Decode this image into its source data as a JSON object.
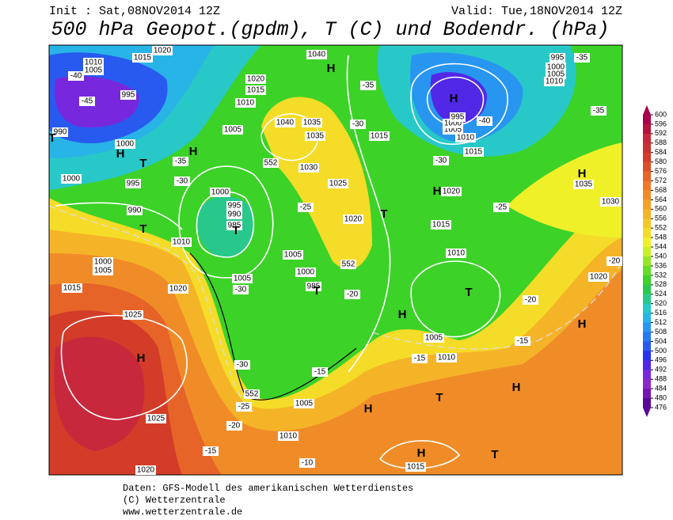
{
  "header": {
    "init": "Init : Sat,08NOV2014 12Z",
    "valid": "Valid: Tue,18NOV2014 12Z",
    "title": "500 hPa Geopot.(gpdm), T (C) und Bodendr. (hPa)"
  },
  "colorbar": {
    "ticks": [
      600,
      596,
      592,
      588,
      584,
      580,
      576,
      572,
      568,
      564,
      560,
      556,
      552,
      548,
      544,
      540,
      536,
      532,
      528,
      524,
      520,
      516,
      512,
      508,
      504,
      500,
      496,
      492,
      488,
      484,
      480,
      476
    ],
    "colors": [
      "#a8004a",
      "#b4143c",
      "#c8283c",
      "#c83232",
      "#d23c28",
      "#dc5028",
      "#e66428",
      "#f07828",
      "#f08c28",
      "#f5a028",
      "#f5b428",
      "#f5c828",
      "#f5dc28",
      "#f0f028",
      "#c8f028",
      "#96e628",
      "#64dc28",
      "#3cd228",
      "#28c850",
      "#28c88c",
      "#28c8c8",
      "#28b4e6",
      "#2896f0",
      "#2878f0",
      "#285af0",
      "#2832f0",
      "#5028e6",
      "#7828dc",
      "#8c28c8",
      "#7814b4",
      "#5a0a96"
    ]
  },
  "map_labels": [
    "1010",
    "1005",
    "1015",
    "1020",
    "-40",
    "-45",
    "995",
    "990",
    "1000",
    "H",
    "T",
    "H",
    "-35",
    "1000",
    "995",
    "-30",
    "990",
    "T",
    "1010",
    "1000",
    "1005",
    "1015",
    "1020",
    "1025",
    "H",
    "1025",
    "1020",
    "1040",
    "H",
    "1020",
    "1015",
    "1010",
    "1040",
    "1035",
    "1035",
    "1005",
    "1030",
    "1025",
    "1000",
    "995",
    "990",
    "985",
    "T",
    "1020",
    "1005",
    "1000",
    "985",
    "1005",
    "-30",
    "-30",
    "-25",
    "552",
    "-20",
    "1005",
    "1010",
    "-10",
    "-15",
    "H",
    "-15",
    "-15",
    "1005",
    "1010",
    "H",
    "T",
    "1010",
    "1015",
    "1020",
    "H",
    "T",
    "-30",
    "1015",
    "1010",
    "1005",
    "1000",
    "995",
    "H",
    "-40",
    "995",
    "1000",
    "1005",
    "1010",
    "-35",
    "-35",
    "H",
    "1035",
    "1030",
    "-25",
    "1020",
    "-20",
    "-20",
    "H",
    "-15",
    "H",
    "T",
    "T",
    "H",
    "1015",
    "-35",
    "-30",
    "1015",
    "-25",
    "T",
    "-20",
    "T",
    "552",
    "552"
  ],
  "footer": {
    "line1": "Daten: GFS-Modell des amerikanischen Wetterdienstes",
    "line2": "(C) Wetterzentrale",
    "line3": "www.wetterzentrale.de"
  }
}
